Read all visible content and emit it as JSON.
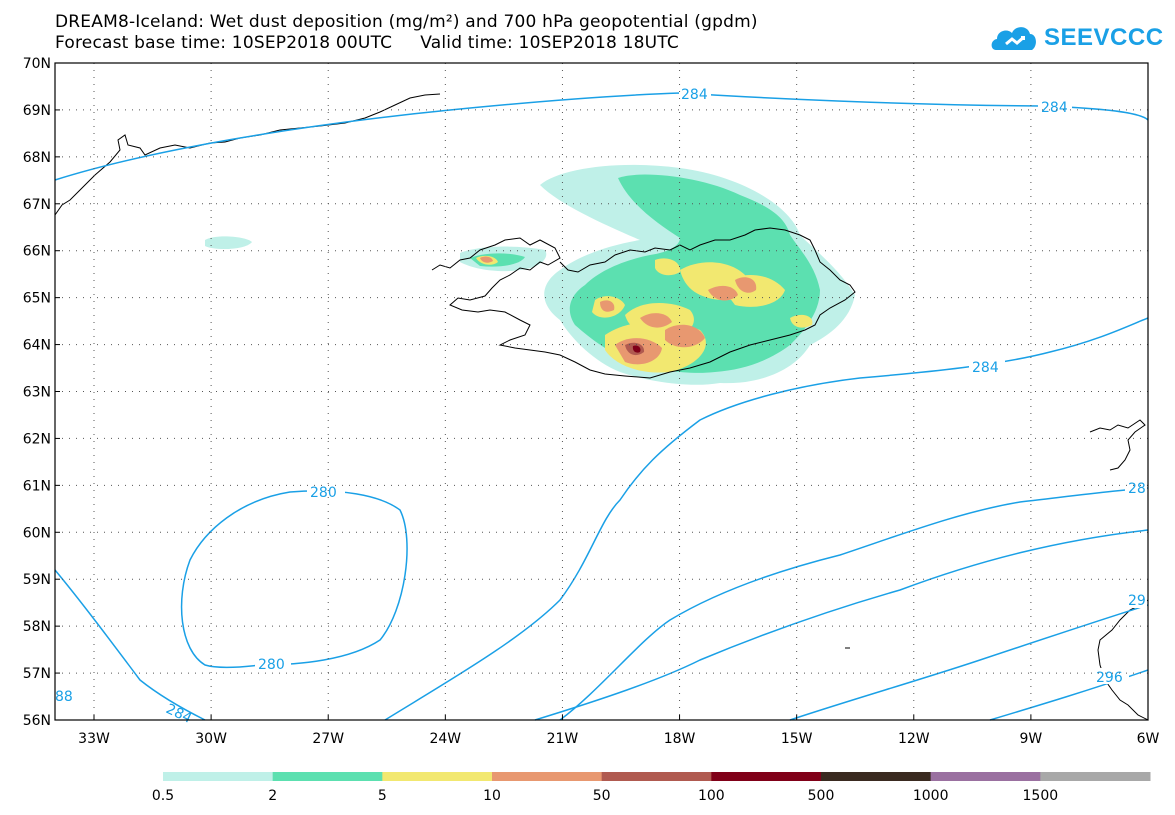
{
  "header": {
    "title_line1": "DREAM8-Iceland: Wet dust deposition (mg/m²) and 700 hPa geopotential (gpdm)",
    "title_line2": "Forecast base time: 10SEP2018 00UTC     Valid time: 10SEP2018 18UTC"
  },
  "logo": {
    "text": "SEEVCCC",
    "color": "#1aa0e6",
    "icon": "cloud-icon"
  },
  "map": {
    "lat_labels": [
      "70N",
      "69N",
      "68N",
      "67N",
      "66N",
      "65N",
      "64N",
      "63N",
      "62N",
      "61N",
      "60N",
      "59N",
      "58N",
      "57N",
      "56N"
    ],
    "lon_labels": [
      "33W",
      "30W",
      "27W",
      "24W",
      "21W",
      "18W",
      "15W",
      "12W",
      "9W",
      "6W"
    ],
    "contour_color": "#1aa0e6",
    "contour_labels": [
      "284",
      "284",
      "284",
      "280",
      "280",
      "28",
      "29",
      "296",
      "88",
      "284"
    ]
  },
  "colorbar": {
    "colors": [
      "#bff0e8",
      "#5ce0b0",
      "#f2e870",
      "#e89870",
      "#b05a50",
      "#800018",
      "#3a2a20",
      "#9a70a0",
      "#a8a8a8"
    ],
    "labels": [
      "0.5",
      "2",
      "5",
      "10",
      "50",
      "100",
      "500",
      "1000",
      "1500"
    ]
  }
}
